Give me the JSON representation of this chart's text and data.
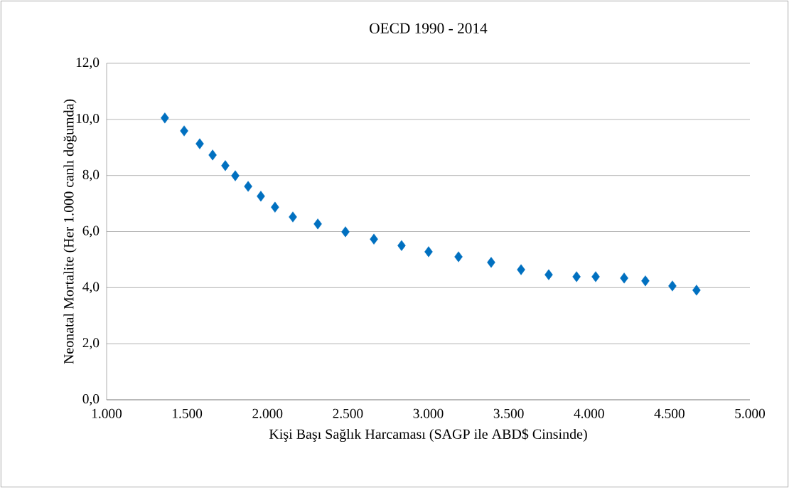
{
  "chart_data": {
    "type": "scatter",
    "title": "OECD 1990 - 2014",
    "xlabel": "Kişi Başı Sağlık Harcaması (SAGP ile ABD$ Cinsinde)",
    "ylabel": "Neonatal Mortalite (Her 1.000 canlı doğumda)",
    "x": [
      1362,
      1482,
      1579,
      1659,
      1738,
      1800,
      1880,
      1959,
      2047,
      2158,
      2313,
      2485,
      2662,
      2834,
      3002,
      3188,
      3391,
      3577,
      3749,
      3922,
      4041,
      4218,
      4350,
      4518,
      4668
    ],
    "series": [
      {
        "color": "#0070c0",
        "values": [
          10.05,
          9.59,
          9.13,
          8.73,
          8.35,
          7.99,
          7.61,
          7.26,
          6.87,
          6.52,
          6.27,
          5.99,
          5.73,
          5.5,
          5.28,
          5.1,
          4.9,
          4.64,
          4.46,
          4.39,
          4.39,
          4.34,
          4.24,
          4.06,
          3.91
        ]
      }
    ],
    "xlim": [
      1000,
      5000
    ],
    "xticks": [
      {
        "value": 1000,
        "label": "1.000"
      },
      {
        "value": 1500,
        "label": "1.500"
      },
      {
        "value": 2000,
        "label": "2.000"
      },
      {
        "value": 2500,
        "label": "2.500"
      },
      {
        "value": 3000,
        "label": "3.000"
      },
      {
        "value": 3500,
        "label": "3.500"
      },
      {
        "value": 4000,
        "label": "4.000"
      },
      {
        "value": 4500,
        "label": "4.500"
      },
      {
        "value": 5000,
        "label": "5.000"
      }
    ],
    "ylim": [
      0,
      12
    ],
    "yticks": [
      {
        "value": 0,
        "label": "0,0"
      },
      {
        "value": 2,
        "label": "2,0"
      },
      {
        "value": 4,
        "label": "4,0"
      },
      {
        "value": 6,
        "label": "6,0"
      },
      {
        "value": 8,
        "label": "8,0"
      },
      {
        "value": 10,
        "label": "10,0"
      },
      {
        "value": 12,
        "label": "12,0"
      }
    ],
    "grid": "y",
    "marker": "diamond"
  }
}
